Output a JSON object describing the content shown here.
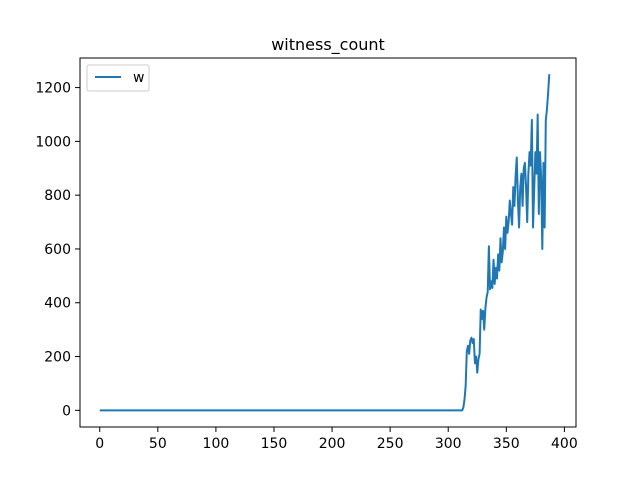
{
  "chart_data": {
    "type": "line",
    "title": "witness_count",
    "xlabel": "",
    "ylabel": "",
    "xlim": [
      -17,
      410
    ],
    "ylim": [
      -62,
      1310
    ],
    "grid": false,
    "legend_position": "top-left",
    "xticks": [
      0,
      50,
      100,
      150,
      200,
      250,
      300,
      350,
      400
    ],
    "yticks": [
      0,
      200,
      400,
      600,
      800,
      1000,
      1200
    ],
    "series": [
      {
        "name": "w",
        "color": "#1f77b4",
        "points": [
          [
            0,
            0
          ],
          [
            50,
            0
          ],
          [
            100,
            0
          ],
          [
            150,
            0
          ],
          [
            200,
            0
          ],
          [
            250,
            0
          ],
          [
            300,
            0
          ],
          [
            312,
            0
          ],
          [
            313,
            10
          ],
          [
            314,
            40
          ],
          [
            315,
            90
          ],
          [
            316,
            220
          ],
          [
            317,
            240
          ],
          [
            318,
            210
          ],
          [
            319,
            260
          ],
          [
            320,
            270
          ],
          [
            321,
            250
          ],
          [
            322,
            265
          ],
          [
            323,
            175
          ],
          [
            324,
            200
          ],
          [
            325,
            140
          ],
          [
            326,
            190
          ],
          [
            327,
            210
          ],
          [
            328,
            375
          ],
          [
            329,
            340
          ],
          [
            330,
            370
          ],
          [
            331,
            300
          ],
          [
            332,
            380
          ],
          [
            333,
            420
          ],
          [
            334,
            440
          ],
          [
            335,
            610
          ],
          [
            336,
            450
          ],
          [
            337,
            480
          ],
          [
            338,
            455
          ],
          [
            339,
            560
          ],
          [
            340,
            470
          ],
          [
            341,
            530
          ],
          [
            342,
            490
          ],
          [
            343,
            580
          ],
          [
            344,
            520
          ],
          [
            345,
            640
          ],
          [
            346,
            550
          ],
          [
            347,
            590
          ],
          [
            348,
            680
          ],
          [
            349,
            600
          ],
          [
            350,
            720
          ],
          [
            351,
            660
          ],
          [
            352,
            700
          ],
          [
            353,
            780
          ],
          [
            354,
            730
          ],
          [
            355,
            690
          ],
          [
            356,
            830
          ],
          [
            357,
            760
          ],
          [
            358,
            870
          ],
          [
            359,
            940
          ],
          [
            360,
            780
          ],
          [
            361,
            680
          ],
          [
            362,
            830
          ],
          [
            363,
            880
          ],
          [
            364,
            760
          ],
          [
            365,
            900
          ],
          [
            366,
            920
          ],
          [
            367,
            830
          ],
          [
            368,
            700
          ],
          [
            369,
            880
          ],
          [
            370,
            960
          ],
          [
            371,
            910
          ],
          [
            372,
            1080
          ],
          [
            373,
            680
          ],
          [
            374,
            820
          ],
          [
            375,
            960
          ],
          [
            376,
            880
          ],
          [
            377,
            1100
          ],
          [
            378,
            730
          ],
          [
            379,
            960
          ],
          [
            380,
            870
          ],
          [
            381,
            600
          ],
          [
            382,
            920
          ],
          [
            383,
            680
          ],
          [
            384,
            1080
          ],
          [
            385,
            1120
          ],
          [
            386,
            1180
          ],
          [
            387,
            1250
          ]
        ]
      }
    ]
  }
}
